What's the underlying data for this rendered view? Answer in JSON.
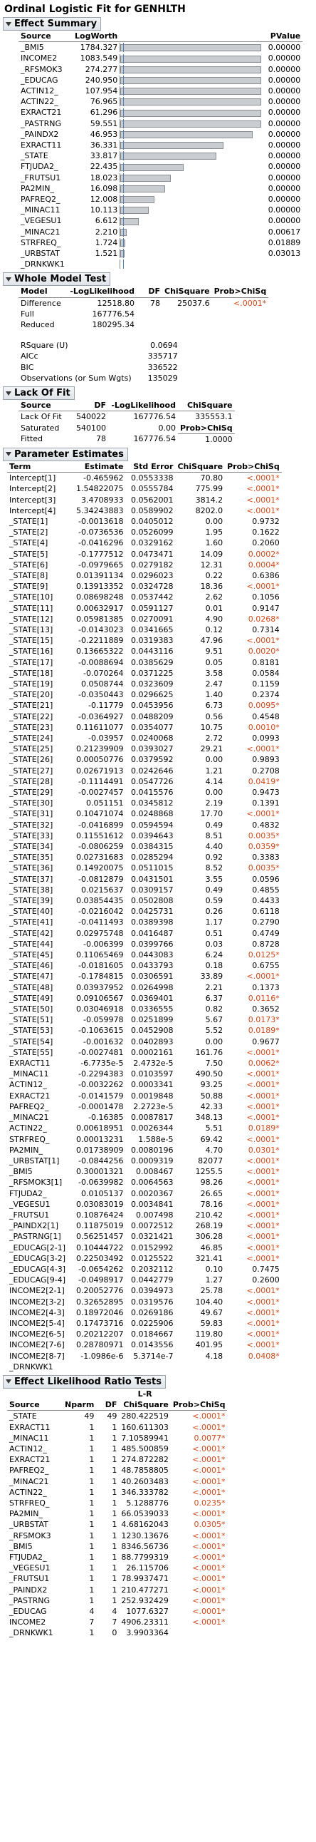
{
  "title": "Ordinal Logistic Fit for GENHLTH",
  "effect_summary": {
    "header": "Effect Summary",
    "col_source": "Source",
    "col_logworth": "LogWorth",
    "col_pvalue": "PValue",
    "rows": [
      {
        "source": "_BMI5",
        "logworth": "1784.327",
        "pvalue": "0.00000",
        "level": 1.0
      },
      {
        "source": "INCOME2",
        "logworth": "1083.549",
        "pvalue": "0.00000",
        "level": 1.0
      },
      {
        "source": "_RFSMOK3",
        "logworth": "274.277",
        "pvalue": "0.00000",
        "level": 1.0
      },
      {
        "source": "_EDUCAG",
        "logworth": "240.950",
        "pvalue": "0.00000",
        "level": 1.0
      },
      {
        "source": "ACTIN12_",
        "logworth": "107.954",
        "pvalue": "0.00000",
        "level": 1.0
      },
      {
        "source": "ACTIN22_",
        "logworth": "76.965",
        "pvalue": "0.00000",
        "level": 1.0
      },
      {
        "source": "EXRACT21",
        "logworth": "61.296",
        "pvalue": "0.00000",
        "level": 1.0
      },
      {
        "source": "_PASTRNG",
        "logworth": "59.551",
        "pvalue": "0.00000",
        "level": 1.0
      },
      {
        "source": "_PAINDX2",
        "logworth": "46.953",
        "pvalue": "0.00000",
        "level": 0.94
      },
      {
        "source": "EXRACT11",
        "logworth": "36.331",
        "pvalue": "0.00000",
        "level": 0.73
      },
      {
        "source": "_STATE",
        "logworth": "33.817",
        "pvalue": "0.00000",
        "level": 0.68
      },
      {
        "source": "FTJUDA2_",
        "logworth": "22.435",
        "pvalue": "0.00000",
        "level": 0.45
      },
      {
        "source": "_FRUTSU1",
        "logworth": "18.023",
        "pvalue": "0.00000",
        "level": 0.36
      },
      {
        "source": "PA2MIN_",
        "logworth": "16.098",
        "pvalue": "0.00000",
        "level": 0.32
      },
      {
        "source": "PAFREQ2_",
        "logworth": "12.008",
        "pvalue": "0.00000",
        "level": 0.24
      },
      {
        "source": "_MINAC11",
        "logworth": "10.113",
        "pvalue": "0.00000",
        "level": 0.2
      },
      {
        "source": "_VEGESU1",
        "logworth": "6.612",
        "pvalue": "0.00000",
        "level": 0.13
      },
      {
        "source": "_MINAC21",
        "logworth": "2.210",
        "pvalue": "0.00617",
        "level": 0.044
      },
      {
        "source": "STRFREQ_",
        "logworth": "1.724",
        "pvalue": "0.01889",
        "level": 0.034
      },
      {
        "source": "_URBSTAT",
        "logworth": "1.521",
        "pvalue": "0.03013",
        "level": 0.03
      },
      {
        "source": "_DRNKWK1",
        "logworth": "",
        "pvalue": "",
        "level": 0
      }
    ]
  },
  "whole_model": {
    "header": "Whole Model Test",
    "cols": [
      "Model",
      "-LogLikelihood",
      "DF",
      "ChiSquare",
      "Prob>ChiSq"
    ],
    "rows": [
      {
        "model": "Difference",
        "ll": "12518.80",
        "df": "78",
        "chisq": "25037.6",
        "prob": "<.0001*"
      },
      {
        "model": "Full",
        "ll": "167776.54",
        "df": "",
        "chisq": "",
        "prob": ""
      },
      {
        "model": "Reduced",
        "ll": "180295.34",
        "df": "",
        "chisq": "",
        "prob": ""
      }
    ],
    "stats": [
      {
        "label": "RSquare (U)",
        "value": "0.0694"
      },
      {
        "label": "AICc",
        "value": "335717"
      },
      {
        "label": "BIC",
        "value": "336522"
      },
      {
        "label": "Observations (or Sum Wgts)",
        "value": "135029"
      }
    ]
  },
  "lack_of_fit": {
    "header": "Lack Of Fit",
    "cols": [
      "Source",
      "DF",
      "-LogLikelihood",
      "ChiSquare"
    ],
    "rows": [
      {
        "source": "Lack Of Fit",
        "df": "540022",
        "ll": "167776.54",
        "chisq": "335553.1"
      },
      {
        "source": "Saturated",
        "df": "540100",
        "ll": "0.00",
        "chisq": "Prob>ChiSq"
      },
      {
        "source": "Fitted",
        "df": "78",
        "ll": "167776.54",
        "chisq": "1.0000"
      }
    ]
  },
  "parameter_estimates": {
    "header": "Parameter Estimates",
    "cols": [
      "Term",
      "Estimate",
      "Std Error",
      "ChiSquare",
      "Prob>ChiSq"
    ],
    "rows": [
      [
        "Intercept[1]",
        "-0.465962",
        "0.0553338",
        "70.80",
        "<.0001*"
      ],
      [
        "Intercept[2]",
        "1.54822075",
        "0.0555784",
        "775.99",
        "<.0001*"
      ],
      [
        "Intercept[3]",
        "3.4708933",
        "0.0562001",
        "3814.2",
        "<.0001*"
      ],
      [
        "Intercept[4]",
        "5.34243883",
        "0.0589902",
        "8202.0",
        "<.0001*"
      ],
      [
        "_STATE[1]",
        "-0.0013618",
        "0.0405012",
        "0.00",
        "0.9732"
      ],
      [
        "_STATE[2]",
        "-0.0736536",
        "0.0526099",
        "1.95",
        "0.1622"
      ],
      [
        "_STATE[4]",
        "-0.0416296",
        "0.0329162",
        "1.60",
        "0.2060"
      ],
      [
        "_STATE[5]",
        "-0.1777512",
        "0.0473471",
        "14.09",
        "0.0002*"
      ],
      [
        "_STATE[6]",
        "-0.0979665",
        "0.0279182",
        "12.31",
        "0.0004*"
      ],
      [
        "_STATE[8]",
        "0.01391134",
        "0.0296023",
        "0.22",
        "0.6386"
      ],
      [
        "_STATE[9]",
        "0.13913352",
        "0.0324728",
        "18.36",
        "<.0001*"
      ],
      [
        "_STATE[10]",
        "0.08698248",
        "0.0537442",
        "2.62",
        "0.1056"
      ],
      [
        "_STATE[11]",
        "0.00632917",
        "0.0591127",
        "0.01",
        "0.9147"
      ],
      [
        "_STATE[12]",
        "0.05981385",
        "0.0270091",
        "4.90",
        "0.0268*"
      ],
      [
        "_STATE[13]",
        "-0.0143023",
        "0.0341665",
        "0.12",
        "0.7314"
      ],
      [
        "_STATE[15]",
        "-0.2211889",
        "0.0319383",
        "47.96",
        "<.0001*"
      ],
      [
        "_STATE[16]",
        "0.13665322",
        "0.0443116",
        "9.51",
        "0.0020*"
      ],
      [
        "_STATE[17]",
        "-0.0088694",
        "0.0385629",
        "0.05",
        "0.8181"
      ],
      [
        "_STATE[18]",
        "-0.070264",
        "0.0371225",
        "3.58",
        "0.0584"
      ],
      [
        "_STATE[19]",
        "0.0508744",
        "0.0323609",
        "2.47",
        "0.1159"
      ],
      [
        "_STATE[20]",
        "-0.0350443",
        "0.0296625",
        "1.40",
        "0.2374"
      ],
      [
        "_STATE[21]",
        "-0.11779",
        "0.0453956",
        "6.73",
        "0.0095*"
      ],
      [
        "_STATE[22]",
        "-0.0364927",
        "0.0488209",
        "0.56",
        "0.4548"
      ],
      [
        "_STATE[23]",
        "0.11611077",
        "0.0354077",
        "10.75",
        "0.0010*"
      ],
      [
        "_STATE[24]",
        "-0.03957",
        "0.0240068",
        "2.72",
        "0.0993"
      ],
      [
        "_STATE[25]",
        "0.21239909",
        "0.0393027",
        "29.21",
        "<.0001*"
      ],
      [
        "_STATE[26]",
        "0.00050776",
        "0.0379592",
        "0.00",
        "0.9893"
      ],
      [
        "_STATE[27]",
        "0.02671913",
        "0.0242646",
        "1.21",
        "0.2708"
      ],
      [
        "_STATE[28]",
        "-0.1114491",
        "0.0547726",
        "4.14",
        "0.0419*"
      ],
      [
        "_STATE[29]",
        "-0.0027457",
        "0.0415576",
        "0.00",
        "0.9473"
      ],
      [
        "_STATE[30]",
        "0.051151",
        "0.0345812",
        "2.19",
        "0.1391"
      ],
      [
        "_STATE[31]",
        "0.10471074",
        "0.0248868",
        "17.70",
        "<.0001*"
      ],
      [
        "_STATE[32]",
        "-0.0416899",
        "0.0594594",
        "0.49",
        "0.4832"
      ],
      [
        "_STATE[33]",
        "0.11551612",
        "0.0394643",
        "8.51",
        "0.0035*"
      ],
      [
        "_STATE[34]",
        "-0.0806259",
        "0.0384315",
        "4.40",
        "0.0359*"
      ],
      [
        "_STATE[35]",
        "0.02731683",
        "0.0285294",
        "0.92",
        "0.3383"
      ],
      [
        "_STATE[36]",
        "0.14920075",
        "0.0511015",
        "8.52",
        "0.0035*"
      ],
      [
        "_STATE[37]",
        "-0.0812879",
        "0.0431501",
        "3.55",
        "0.0596"
      ],
      [
        "_STATE[38]",
        "0.0215637",
        "0.0309157",
        "0.49",
        "0.4855"
      ],
      [
        "_STATE[39]",
        "0.03854435",
        "0.0502808",
        "0.59",
        "0.4433"
      ],
      [
        "_STATE[40]",
        "-0.0216042",
        "0.0425731",
        "0.26",
        "0.6118"
      ],
      [
        "_STATE[41]",
        "-0.0411493",
        "0.0389398",
        "1.17",
        "0.2790"
      ],
      [
        "_STATE[42]",
        "0.02975748",
        "0.0416487",
        "0.51",
        "0.4749"
      ],
      [
        "_STATE[44]",
        "-0.006399",
        "0.0399766",
        "0.03",
        "0.8728"
      ],
      [
        "_STATE[45]",
        "0.11065469",
        "0.0443083",
        "6.24",
        "0.0125*"
      ],
      [
        "_STATE[46]",
        "-0.0181605",
        "0.0433793",
        "0.18",
        "0.6755"
      ],
      [
        "_STATE[47]",
        "-0.1784815",
        "0.0306591",
        "33.89",
        "<.0001*"
      ],
      [
        "_STATE[48]",
        "0.03937952",
        "0.0264998",
        "2.21",
        "0.1373"
      ],
      [
        "_STATE[49]",
        "0.09106567",
        "0.0369401",
        "6.37",
        "0.0116*"
      ],
      [
        "_STATE[50]",
        "0.03046918",
        "0.0336555",
        "0.82",
        "0.3652"
      ],
      [
        "_STATE[51]",
        "-0.059978",
        "0.0251899",
        "5.67",
        "0.0173*"
      ],
      [
        "_STATE[53]",
        "-0.1063615",
        "0.0452908",
        "5.52",
        "0.0189*"
      ],
      [
        "_STATE[54]",
        "-0.001632",
        "0.0402893",
        "0.00",
        "0.9677"
      ],
      [
        "_STATE[55]",
        "-0.0027481",
        "0.0002161",
        "161.76",
        "<.0001*"
      ],
      [
        "EXRACT11",
        "-6.7735e-5",
        "2.4732e-5",
        "7.50",
        "0.0062*"
      ],
      [
        "_MINAC11",
        "-0.2294383",
        "0.0103597",
        "490.50",
        "<.0001*"
      ],
      [
        "ACTIN12_",
        "-0.0032262",
        "0.0003341",
        "93.25",
        "<.0001*"
      ],
      [
        "EXRACT21",
        "-0.0141579",
        "0.0019848",
        "50.88",
        "<.0001*"
      ],
      [
        "PAFREQ2_",
        "-0.0001478",
        "2.2723e-5",
        "42.33",
        "<.0001*"
      ],
      [
        "_MINAC21",
        "-0.16385",
        "0.0087817",
        "348.13",
        "<.0001*"
      ],
      [
        "ACTIN22_",
        "0.00618951",
        "0.0026344",
        "5.51",
        "0.0189*"
      ],
      [
        "STRFREQ_",
        "0.00013231",
        "1.588e-5",
        "69.42",
        "<.0001*"
      ],
      [
        "PA2MIN_",
        "0.01738909",
        "0.0080196",
        "4.70",
        "0.0301*"
      ],
      [
        "_URBSTAT[1]",
        "-0.0844256",
        "0.0009319",
        "82077",
        "<.0001*"
      ],
      [
        "_BMI5",
        "0.30001321",
        "0.008467",
        "1255.5",
        "<.0001*"
      ],
      [
        "_RFSMOK3[1]",
        "-0.0639982",
        "0.0064563",
        "98.26",
        "<.0001*"
      ],
      [
        "FTJUDA2_",
        "0.0105137",
        "0.0020367",
        "26.65",
        "<.0001*"
      ],
      [
        "_VEGESU1",
        "0.03083019",
        "0.0034841",
        "78.16",
        "<.0001*"
      ],
      [
        "_FRUTSU1",
        "0.10876424",
        "0.007498",
        "210.42",
        "<.0001*"
      ],
      [
        "_PAINDX2[1]",
        "0.11875019",
        "0.0072512",
        "268.19",
        "<.0001*"
      ],
      [
        "_PASTRNG[1]",
        "0.56251457",
        "0.0321421",
        "306.28",
        "<.0001*"
      ],
      [
        "_EDUCAG[2-1]",
        "0.10444722",
        "0.0152992",
        "46.85",
        "<.0001*"
      ],
      [
        "_EDUCAG[3-2]",
        "0.22503492",
        "0.0125522",
        "321.41",
        "<.0001*"
      ],
      [
        "_EDUCAG[4-3]",
        "-0.0654262",
        "0.2032112",
        "0.10",
        "0.7475"
      ],
      [
        "_EDUCAG[9-4]",
        "-0.0498917",
        "0.0442779",
        "1.27",
        "0.2600"
      ],
      [
        "INCOME2[2-1]",
        "0.20052776",
        "0.0394973",
        "25.78",
        "<.0001*"
      ],
      [
        "INCOME2[3-2]",
        "0.32652895",
        "0.0319576",
        "104.40",
        "<.0001*"
      ],
      [
        "INCOME2[4-3]",
        "0.18972046",
        "0.0269186",
        "49.67",
        "<.0001*"
      ],
      [
        "INCOME2[5-4]",
        "0.17473716",
        "0.0225906",
        "59.83",
        "<.0001*"
      ],
      [
        "INCOME2[6-5]",
        "0.20212207",
        "0.0184667",
        "119.80",
        "<.0001*"
      ],
      [
        "INCOME2[7-6]",
        "0.28780971",
        "0.0143556",
        "401.95",
        "<.0001*"
      ],
      [
        "INCOME2[8-7]",
        "-1.0986e-6",
        "5.3714e-7",
        "4.18",
        "0.0408*"
      ],
      [
        "_DRNKWK1",
        "",
        "",
        "",
        ""
      ]
    ]
  },
  "effect_lr": {
    "header": "Effect Likelihood Ratio Tests",
    "lr_label": "L-R",
    "cols": [
      "Source",
      "Nparm",
      "DF",
      "ChiSquare",
      "Prob>ChiSq"
    ],
    "rows": [
      [
        "_STATE",
        "49",
        "49",
        "280.422519",
        "<.0001*"
      ],
      [
        "EXRACT11",
        "1",
        "1",
        "160.611303",
        "<.0001*"
      ],
      [
        "_MINAC11",
        "1",
        "1",
        "7.10589941",
        "0.0077*"
      ],
      [
        "ACTIN12_",
        "1",
        "1",
        "485.500859",
        "<.0001*"
      ],
      [
        "EXRACT21",
        "1",
        "1",
        "274.872282",
        "<.0001*"
      ],
      [
        "PAFREQ2_",
        "1",
        "1",
        "48.7858805",
        "<.0001*"
      ],
      [
        "_MINAC21",
        "1",
        "1",
        "40.2603483",
        "<.0001*"
      ],
      [
        "ACTIN22_",
        "1",
        "1",
        "346.333782",
        "<.0001*"
      ],
      [
        "STRFREQ_",
        "1",
        "1",
        "5.1288776",
        "0.0235*"
      ],
      [
        "PA2MIN_",
        "1",
        "1",
        "66.0539033",
        "<.0001*"
      ],
      [
        "_URBSTAT",
        "1",
        "1",
        "4.68162043",
        "0.0305*"
      ],
      [
        "_RFSMOK3",
        "1",
        "1",
        "1230.13676",
        "<.0001*"
      ],
      [
        "_BMI5",
        "1",
        "1",
        "8346.56736",
        "<.0001*"
      ],
      [
        "FTJUDA2_",
        "1",
        "1",
        "88.7799319",
        "<.0001*"
      ],
      [
        "_VEGESU1",
        "1",
        "1",
        "26.115706",
        "<.0001*"
      ],
      [
        "_FRUTSU1",
        "1",
        "1",
        "78.9937471",
        "<.0001*"
      ],
      [
        "_PAINDX2",
        "1",
        "1",
        "210.477271",
        "<.0001*"
      ],
      [
        "_PASTRNG",
        "1",
        "1",
        "252.932429",
        "<.0001*"
      ],
      [
        "_EDUCAG",
        "4",
        "4",
        "1077.6327",
        "<.0001*"
      ],
      [
        "INCOME2",
        "7",
        "7",
        "4906.23311",
        "<.0001*"
      ],
      [
        "_DRNKWK1",
        "1",
        "0",
        "3.9903364",
        ""
      ]
    ]
  }
}
